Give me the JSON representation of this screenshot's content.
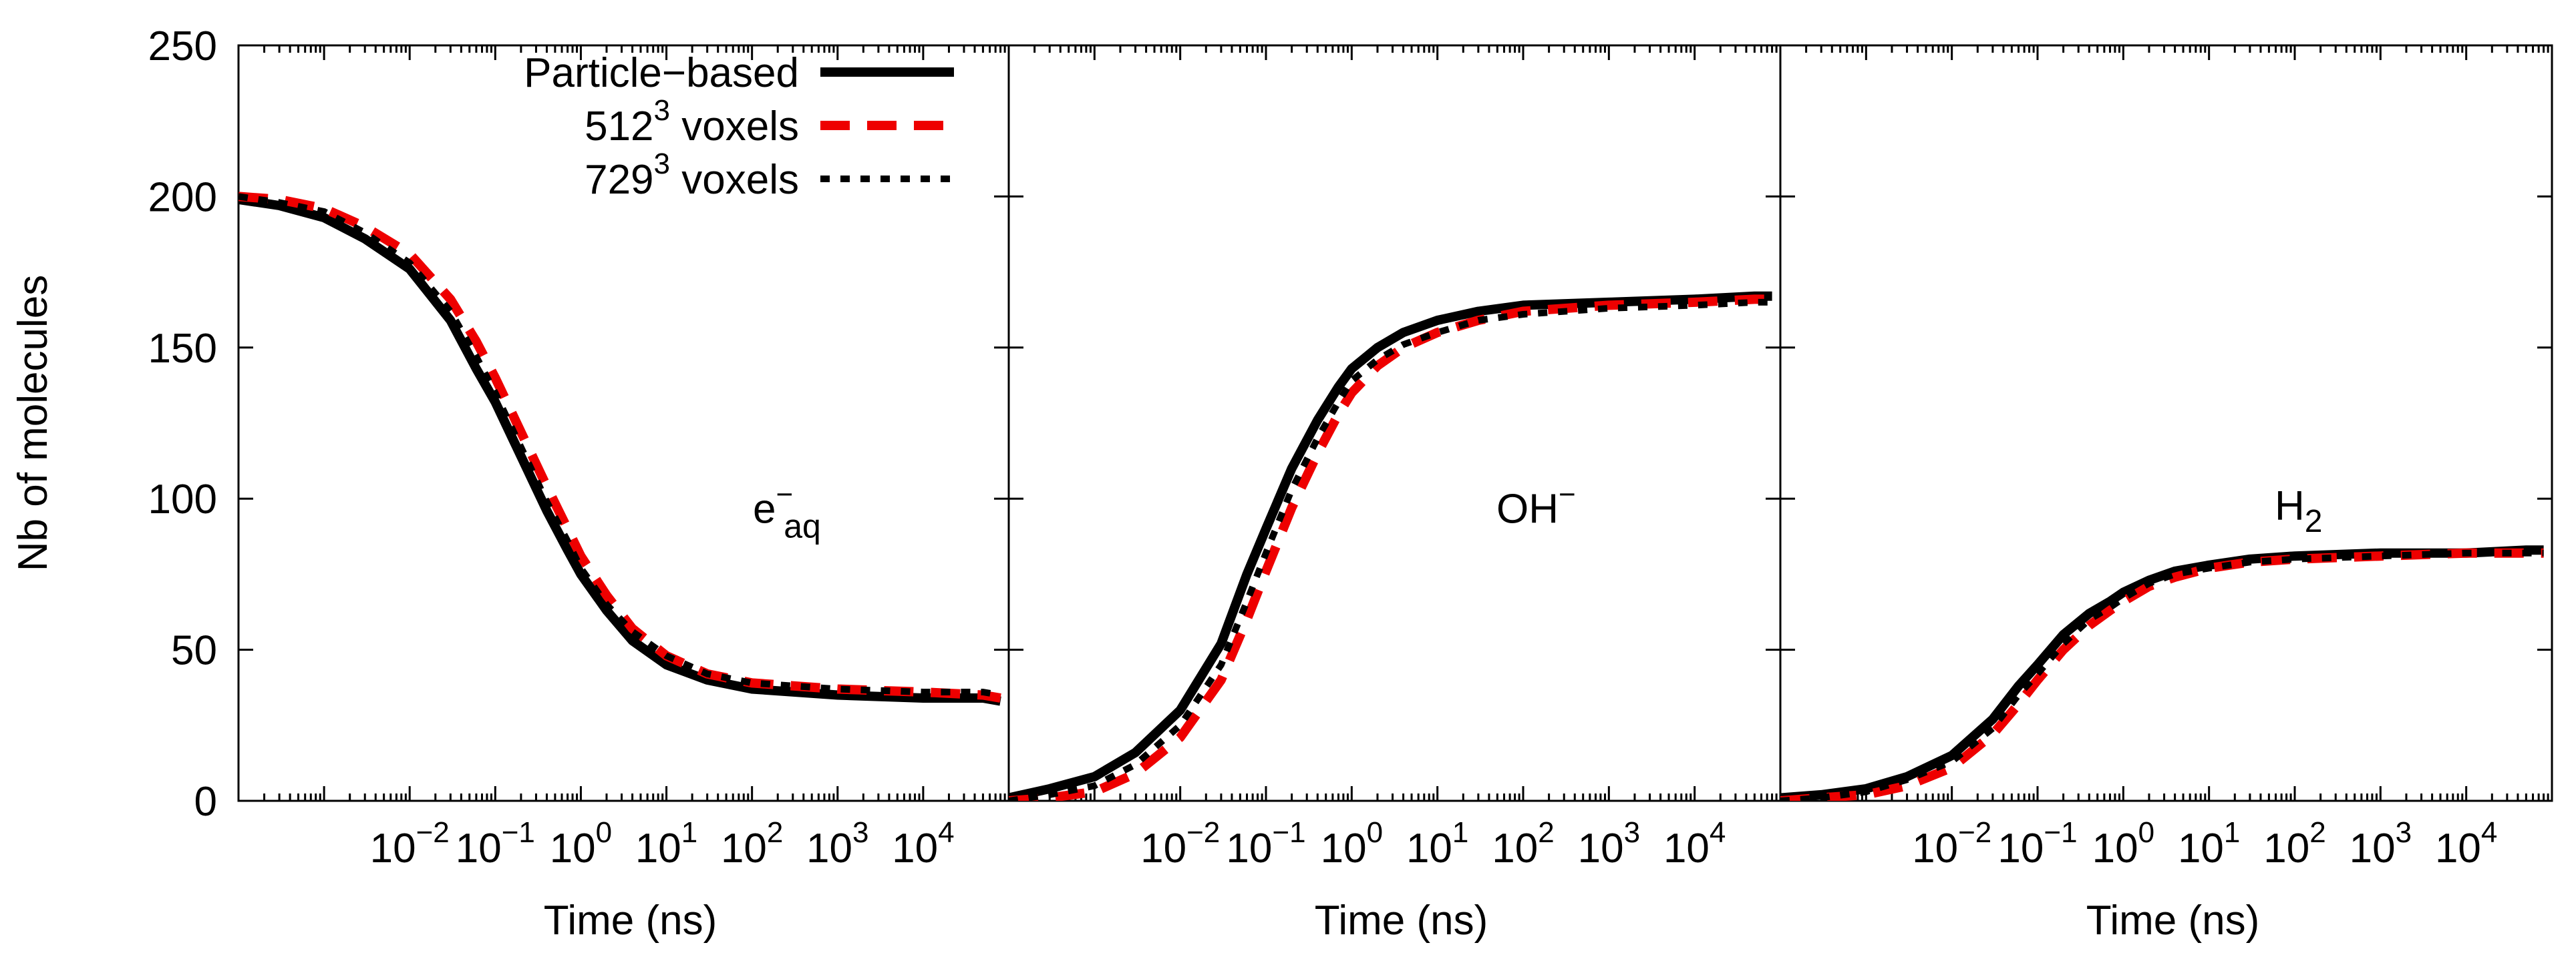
{
  "colors": {
    "particle": "#000000",
    "voxels512": "#ee0000",
    "voxels729": "#000000",
    "frame": "#000000",
    "background": "#ffffff"
  },
  "chart_data": [
    {
      "type": "line",
      "panel": "e_aq",
      "annotation": {
        "base": "e",
        "sup": "−",
        "sub": "aq"
      },
      "xlabel": "Time (ns)",
      "ylabel": "Nb of molecules",
      "xscale": "log",
      "xlim": [
        0.0001,
        100000
      ],
      "ylim": [
        0,
        250
      ],
      "yticks": [
        0,
        50,
        100,
        150,
        200,
        250
      ],
      "xticks": [
        {
          "value": 0.01,
          "base": "10",
          "exp": "−2"
        },
        {
          "value": 0.1,
          "base": "10",
          "exp": "−1"
        },
        {
          "value": 1,
          "base": "10",
          "exp": "0"
        },
        {
          "value": 10,
          "base": "10",
          "exp": "1"
        },
        {
          "value": 100,
          "base": "10",
          "exp": "2"
        },
        {
          "value": 1000,
          "base": "10",
          "exp": "3"
        },
        {
          "value": 10000,
          "base": "10",
          "exp": "4"
        }
      ],
      "legend": {
        "position": "top-right",
        "entries": [
          {
            "series": "particle",
            "text": "Particle−based"
          },
          {
            "series": "voxels512",
            "text": "512",
            "sup": "3",
            "suffix": " voxels"
          },
          {
            "series": "voxels729",
            "text": "729",
            "sup": "3",
            "suffix": " voxels"
          }
        ]
      },
      "series": [
        {
          "name": "Particle-based",
          "key": "particle",
          "x": [
            0.0001,
            0.0003,
            0.001,
            0.003,
            0.01,
            0.03,
            0.06,
            0.1,
            0.2,
            0.4,
            0.7,
            1,
            2,
            4,
            10,
            30,
            100,
            1000,
            10000,
            50000,
            80000
          ],
          "y": [
            199,
            197,
            193,
            186,
            176,
            159,
            143,
            132,
            114,
            96,
            83,
            75,
            63,
            53,
            45,
            40,
            37,
            35,
            34,
            34,
            33
          ]
        },
        {
          "name": "512^3 voxels",
          "key": "voxels512",
          "x": [
            0.0001,
            0.0003,
            0.001,
            0.003,
            0.01,
            0.03,
            0.06,
            0.1,
            0.2,
            0.4,
            0.7,
            1,
            2,
            4,
            10,
            30,
            100,
            1000,
            10000,
            50000,
            80000
          ],
          "y": [
            200,
            199,
            196,
            190,
            181,
            166,
            152,
            140,
            122,
            104,
            90,
            81,
            68,
            57,
            48,
            42,
            39,
            37,
            36,
            35,
            34
          ]
        },
        {
          "name": "729^3 voxels",
          "key": "voxels729",
          "x": [
            0.0001,
            0.0003,
            0.001,
            0.003,
            0.01,
            0.03,
            0.06,
            0.1,
            0.2,
            0.4,
            0.7,
            1,
            2,
            4,
            10,
            30,
            100,
            1000,
            10000,
            50000,
            80000
          ],
          "y": [
            200,
            198,
            195,
            188,
            178,
            162,
            147,
            135,
            117,
            99,
            86,
            77,
            65,
            56,
            48,
            42,
            39,
            37,
            36,
            36,
            35
          ]
        }
      ]
    },
    {
      "type": "line",
      "panel": "OH",
      "annotation": {
        "base": "OH",
        "sup": "−",
        "sub": ""
      },
      "xlabel": "Time (ns)",
      "ylabel": "",
      "xscale": "log",
      "xlim": [
        0.0001,
        100000
      ],
      "ylim": [
        0,
        250
      ],
      "xticks": [
        {
          "value": 0.01,
          "base": "10",
          "exp": "−2"
        },
        {
          "value": 0.1,
          "base": "10",
          "exp": "−1"
        },
        {
          "value": 1,
          "base": "10",
          "exp": "0"
        },
        {
          "value": 10,
          "base": "10",
          "exp": "1"
        },
        {
          "value": 100,
          "base": "10",
          "exp": "2"
        },
        {
          "value": 1000,
          "base": "10",
          "exp": "3"
        },
        {
          "value": 10000,
          "base": "10",
          "exp": "4"
        }
      ],
      "series": [
        {
          "name": "Particle-based",
          "key": "particle",
          "x": [
            0.0001,
            0.0003,
            0.001,
            0.003,
            0.01,
            0.03,
            0.06,
            0.1,
            0.2,
            0.4,
            0.7,
            1,
            2,
            4,
            10,
            30,
            100,
            1000,
            10000,
            50000,
            80000
          ],
          "y": [
            1,
            4,
            8,
            16,
            30,
            52,
            75,
            90,
            110,
            126,
            137,
            143,
            150,
            155,
            159,
            162,
            164,
            165,
            166,
            167,
            167
          ]
        },
        {
          "name": "512^3 voxels",
          "key": "voxels512",
          "x": [
            0.0001,
            0.0003,
            0.001,
            0.003,
            0.01,
            0.03,
            0.06,
            0.1,
            0.2,
            0.4,
            0.7,
            1,
            2,
            4,
            10,
            30,
            100,
            1000,
            10000,
            50000,
            80000
          ],
          "y": [
            0,
            1,
            3,
            9,
            21,
            40,
            60,
            76,
            97,
            115,
            128,
            135,
            144,
            150,
            155,
            159,
            162,
            164,
            165,
            166,
            166
          ]
        },
        {
          "name": "729^3 voxels",
          "key": "voxels729",
          "x": [
            0.0001,
            0.0003,
            0.001,
            0.003,
            0.01,
            0.03,
            0.06,
            0.1,
            0.2,
            0.4,
            0.7,
            1,
            2,
            4,
            10,
            30,
            100,
            1000,
            10000,
            50000,
            80000
          ],
          "y": [
            0,
            2,
            5,
            12,
            25,
            45,
            66,
            82,
            103,
            120,
            132,
            139,
            146,
            151,
            155,
            159,
            161,
            163,
            164,
            165,
            165
          ]
        }
      ]
    },
    {
      "type": "line",
      "panel": "H2",
      "annotation": {
        "base": "H",
        "sup": "",
        "sub": "2"
      },
      "xlabel": "Time (ns)",
      "ylabel": "",
      "xscale": "log",
      "xlim": [
        0.0001,
        100000
      ],
      "ylim": [
        0,
        250
      ],
      "xticks": [
        {
          "value": 0.01,
          "base": "10",
          "exp": "−2"
        },
        {
          "value": 0.1,
          "base": "10",
          "exp": "−1"
        },
        {
          "value": 1,
          "base": "10",
          "exp": "0"
        },
        {
          "value": 10,
          "base": "10",
          "exp": "1"
        },
        {
          "value": 100,
          "base": "10",
          "exp": "2"
        },
        {
          "value": 1000,
          "base": "10",
          "exp": "3"
        },
        {
          "value": 10000,
          "base": "10",
          "exp": "4"
        }
      ],
      "series": [
        {
          "name": "Particle-based",
          "key": "particle",
          "x": [
            0.0001,
            0.0003,
            0.001,
            0.003,
            0.01,
            0.03,
            0.06,
            0.1,
            0.2,
            0.4,
            0.7,
            1,
            2,
            4,
            10,
            30,
            100,
            1000,
            10000,
            50000,
            80000
          ],
          "y": [
            1,
            2,
            4,
            8,
            15,
            27,
            38,
            45,
            55,
            62,
            66,
            69,
            73,
            76,
            78,
            80,
            81,
            82,
            82,
            83,
            83
          ]
        },
        {
          "name": "512^3 voxels",
          "key": "voxels512",
          "x": [
            0.0001,
            0.0003,
            0.001,
            0.003,
            0.01,
            0.03,
            0.06,
            0.1,
            0.2,
            0.4,
            0.7,
            1,
            2,
            4,
            10,
            30,
            100,
            1000,
            10000,
            50000,
            80000
          ],
          "y": [
            0,
            1,
            2,
            5,
            11,
            22,
            32,
            40,
            50,
            58,
            63,
            66,
            71,
            74,
            77,
            79,
            80,
            81,
            82,
            82,
            82
          ]
        },
        {
          "name": "729^3 voxels",
          "key": "voxels729",
          "x": [
            0.0001,
            0.0003,
            0.001,
            0.003,
            0.01,
            0.03,
            0.06,
            0.1,
            0.2,
            0.4,
            0.7,
            1,
            2,
            4,
            10,
            30,
            100,
            1000,
            10000,
            50000,
            80000
          ],
          "y": [
            0,
            1,
            3,
            7,
            13,
            24,
            35,
            42,
            52,
            60,
            64,
            67,
            72,
            75,
            77,
            79,
            80,
            81,
            82,
            82,
            82
          ]
        }
      ]
    }
  ]
}
